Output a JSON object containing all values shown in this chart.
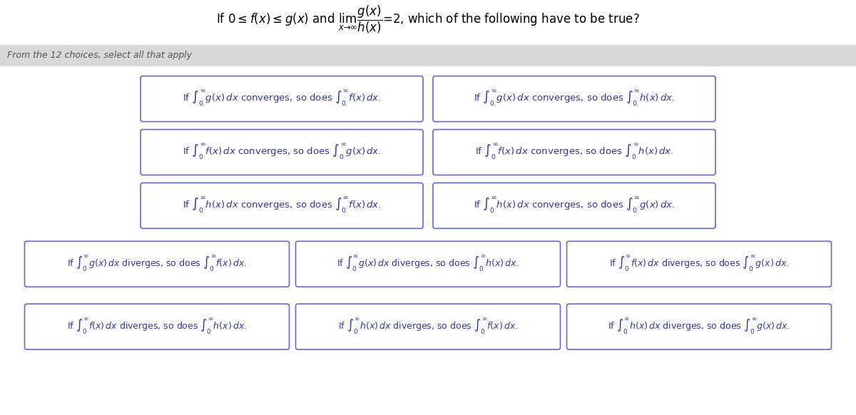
{
  "title": "If $0 \\leq f(x) \\leq g(x)$ and $\\lim_{x \\to \\infty} \\dfrac{g(x)}{h(x)} = 2$, which of the following have to be true?",
  "subtitle": "From the 12 choices, select all that apply",
  "bg_color": "#ffffff",
  "subtitle_bg": "#d9d9d9",
  "box_border_color": "#6666cc",
  "text_color": "#3333aa",
  "subtitle_text_color": "#555555",
  "title_color": "#000000",
  "boxes": [
    [
      "If $\\int_0^{\\infty} g(x)\\, dx$ converges, so does $\\int_0^{\\infty} f(x)\\, dx$.",
      "If $\\int_0^{\\infty} g(x)\\, dx$ converges, so does $\\int_0^{\\infty} h(x)\\, dx$."
    ],
    [
      "If $\\int_0^{\\infty} f(x)\\, dx$ converges, so does $\\int_0^{\\infty} g(x)\\, dx$.",
      "If $\\int_0^{\\infty} f(x)\\, dx$ converges, so does $\\int_0^{\\infty} h(x)\\, dx$."
    ],
    [
      "If $\\int_0^{\\infty} h(x)\\, dx$ converges, so does $\\int_0^{\\infty} f(x)\\, dx$.",
      "If $\\int_0^{\\infty} h(x)\\, dx$ converges, so does $\\int_0^{\\infty} g(x)\\, dx$."
    ],
    [
      "If $\\int_0^{\\infty} g(x)\\, dx$ diverges, so does $\\int_0^{\\infty} f(x)\\, dx$.",
      "If $\\int_0^{\\infty} g(x)\\, dx$ diverges, so does $\\int_0^{\\infty} h(x)\\, dx$.",
      "If $\\int_0^{\\infty} f(x)\\, dx$ diverges, so does $\\int_0^{\\infty} g(x)\\, dx$."
    ],
    [
      "If $\\int_0^{\\infty} f(x)\\, dx$ diverges, so does $\\int_0^{\\infty} h(x)\\, dx$.",
      "If $\\int_0^{\\infty} h(x)\\, dx$ diverges, so does $\\int_0^{\\infty} f(x)\\, dx$.",
      "If $\\int_0^{\\infty} h(x)\\, dx$ diverges, so does $\\int_0^{\\infty} g(x)\\, dx$."
    ]
  ]
}
